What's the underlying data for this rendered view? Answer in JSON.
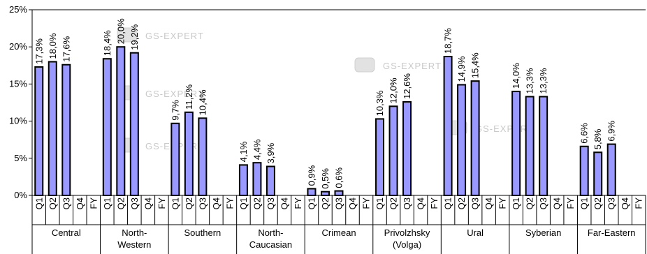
{
  "chart_data": {
    "type": "bar",
    "ylim": [
      0,
      25
    ],
    "yticks": [
      "0%",
      "5%",
      "10%",
      "15%",
      "20%",
      "25%"
    ],
    "periods": [
      "Q1",
      "Q2",
      "Q3",
      "Q4",
      "FY"
    ],
    "bar_color": "#9999ff",
    "grid": false,
    "regions": [
      {
        "name": [
          "Central"
        ],
        "values": [
          17.3,
          18.0,
          17.6,
          null,
          null
        ],
        "labels": [
          "17,3%",
          "18,0%",
          "17,6%",
          "",
          ""
        ]
      },
      {
        "name": [
          "North-",
          "Western"
        ],
        "values": [
          18.4,
          20.0,
          19.2,
          null,
          null
        ],
        "labels": [
          "18,4%",
          "20,0%",
          "19,2%",
          "",
          ""
        ]
      },
      {
        "name": [
          "Southern"
        ],
        "values": [
          9.7,
          11.2,
          10.4,
          null,
          null
        ],
        "labels": [
          "9,7%",
          "11,2%",
          "10,4%",
          "",
          ""
        ]
      },
      {
        "name": [
          "North-",
          "Caucasian"
        ],
        "values": [
          4.1,
          4.4,
          3.9,
          null,
          null
        ],
        "labels": [
          "4,1%",
          "4,4%",
          "3,9%",
          "",
          ""
        ]
      },
      {
        "name": [
          "Crimean"
        ],
        "values": [
          0.9,
          0.5,
          0.6,
          null,
          null
        ],
        "labels": [
          "0,9%",
          "0,5%",
          "0,6%",
          "",
          ""
        ]
      },
      {
        "name": [
          "Privolzhsky",
          "(Volga)"
        ],
        "values": [
          10.3,
          12.0,
          12.6,
          null,
          null
        ],
        "labels": [
          "10,3%",
          "12,0%",
          "12,6%",
          "",
          ""
        ]
      },
      {
        "name": [
          "Ural"
        ],
        "values": [
          18.7,
          14.9,
          15.4,
          null,
          null
        ],
        "labels": [
          "18,7%",
          "14,9%",
          "15,4%",
          "",
          ""
        ]
      },
      {
        "name": [
          "Syberian"
        ],
        "values": [
          14.0,
          13.3,
          13.3,
          null,
          null
        ],
        "labels": [
          "14,0%",
          "13,3%",
          "13,3%",
          "",
          ""
        ]
      },
      {
        "name": [
          "Far-Eastern"
        ],
        "values": [
          6.6,
          5.8,
          6.9,
          null,
          null
        ],
        "labels": [
          "6,6%",
          "5,8%",
          "6,9%",
          "",
          ""
        ]
      }
    ]
  },
  "watermark": {
    "text": "GS-EXPERT"
  }
}
